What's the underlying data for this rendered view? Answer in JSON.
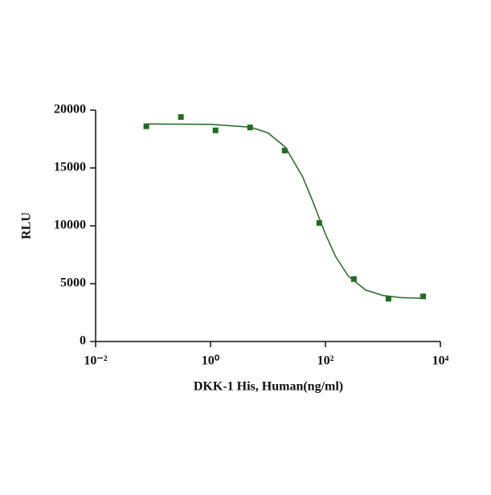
{
  "chart_data": {
    "type": "scatter",
    "x_label": "DKK-1 His, Human(ng/ml)",
    "y_label": "RLU",
    "xlim": [
      0.01,
      10000
    ],
    "ylim": [
      0,
      20000
    ],
    "xlog": true,
    "xticks": [
      {
        "value": 0.01,
        "label": "10⁻²"
      },
      {
        "value": 1,
        "label": "10⁰"
      },
      {
        "value": 100,
        "label": "10²"
      },
      {
        "value": 10000,
        "label": "10⁴"
      }
    ],
    "yticks": [
      0,
      5000,
      10000,
      15000,
      20000
    ],
    "series": [
      {
        "color": "#1e6b1e",
        "marker": "square",
        "x": [
          0.0763,
          0.305,
          1.22,
          4.88,
          19.5,
          78.1,
          312.5,
          1250,
          5000
        ],
        "values": [
          18600,
          19400,
          18250,
          18500,
          16500,
          10250,
          5400,
          3700,
          3900
        ]
      },
      {
        "color": "#2f6e2f",
        "marker": "line",
        "x": [
          0.0763,
          1,
          5,
          10,
          20,
          40,
          60,
          100,
          150,
          250,
          500,
          1000,
          2000,
          5000
        ],
        "values": [
          18800,
          18770,
          18520,
          18030,
          16800,
          14250,
          12120,
          9280,
          7350,
          5650,
          4450,
          3980,
          3800,
          3730
        ]
      }
    ]
  }
}
